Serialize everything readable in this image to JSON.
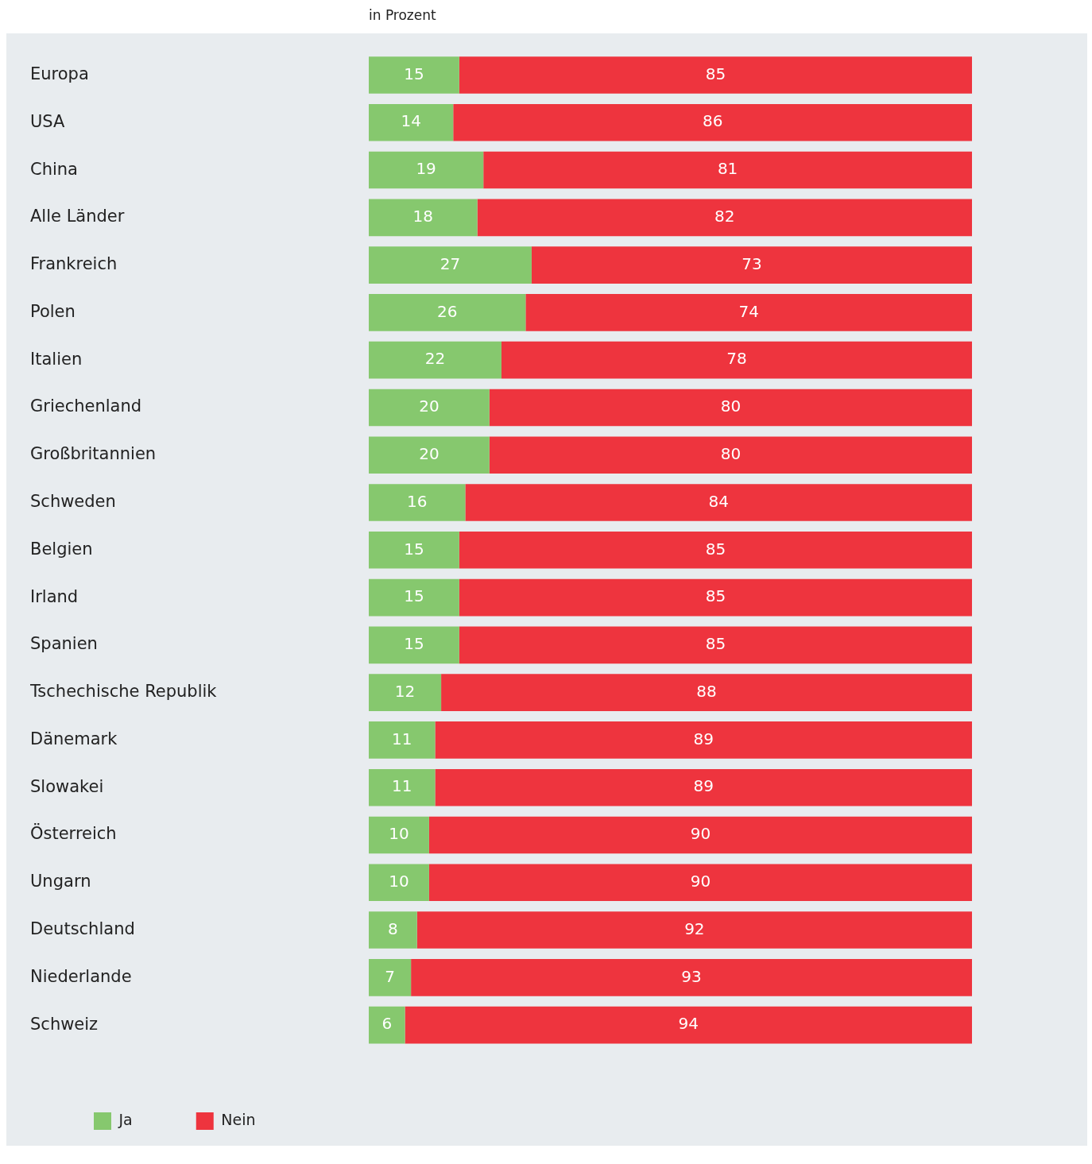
{
  "chart_data": {
    "type": "bar",
    "orientation": "horizontal",
    "stacked": true,
    "subtitle": "in Prozent",
    "categories": [
      "Europa",
      "USA",
      "China",
      "Alle Länder",
      "Frankreich",
      "Polen",
      "Italien",
      "Griechenland",
      "Großbritannien",
      "Schweden",
      "Belgien",
      "Irland",
      "Spanien",
      "Tschechische Republik",
      "Dänemark",
      "Slowakei",
      "Österreich",
      "Ungarn",
      "Deutschland",
      "Niederlande",
      "Schweiz"
    ],
    "series": [
      {
        "name": "Ja",
        "color": "#86c86e",
        "values": [
          15,
          14,
          19,
          18,
          27,
          26,
          22,
          20,
          20,
          16,
          15,
          15,
          15,
          12,
          11,
          11,
          10,
          10,
          8,
          7,
          6
        ]
      },
      {
        "name": "Nein",
        "color": "#ee343e",
        "values": [
          85,
          86,
          81,
          82,
          73,
          74,
          78,
          80,
          80,
          84,
          85,
          85,
          85,
          88,
          89,
          89,
          90,
          90,
          92,
          93,
          94
        ]
      }
    ],
    "xlim": [
      0,
      100
    ],
    "tick_labels": "y",
    "legend": "bottom",
    "data_labels": true
  }
}
